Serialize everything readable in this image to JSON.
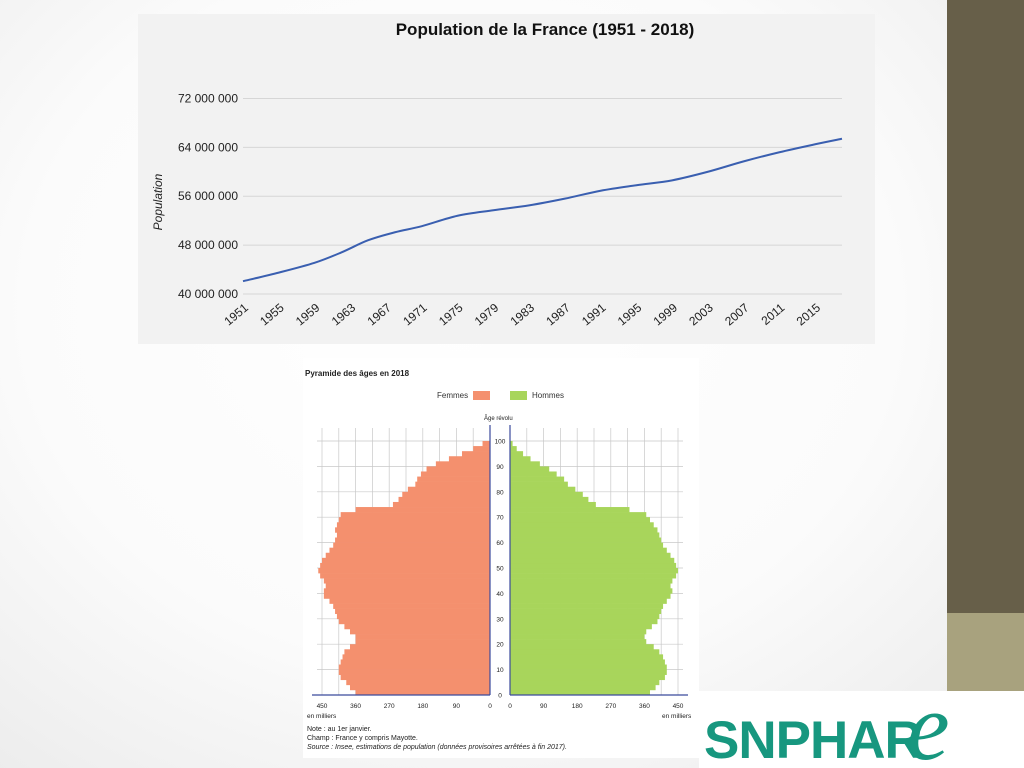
{
  "logo": {
    "text": "SNPHAR",
    "script_letter": "e",
    "color": "#17977f"
  },
  "chart_data": [
    {
      "type": "line",
      "title": "Population de la France (1951 - 2018)",
      "xlabel": "",
      "ylabel": "Population",
      "ylim": [
        40000000,
        76000000
      ],
      "xlim": [
        1951,
        2018
      ],
      "yticks": [
        "40 000 000",
        "48 000 000",
        "56 000 000",
        "64 000 000",
        "72 000 000"
      ],
      "ytick_values": [
        40000000,
        48000000,
        56000000,
        64000000,
        72000000
      ],
      "xticks": [
        "1951",
        "1955",
        "1959",
        "1963",
        "1967",
        "1971",
        "1975",
        "1979",
        "1983",
        "1987",
        "1991",
        "1995",
        "1999",
        "2003",
        "2007",
        "2011",
        "2015"
      ],
      "grid": true,
      "line_color": "#3a5fb0",
      "series": [
        {
          "x": [
            1951,
            1955,
            1959,
            1962,
            1965,
            1968,
            1971,
            1975,
            1979,
            1983,
            1987,
            1991,
            1995,
            1999,
            2003,
            2007,
            2011,
            2015,
            2018
          ],
          "values": [
            42100000,
            43500000,
            45100000,
            46800000,
            48800000,
            50100000,
            51100000,
            52800000,
            53700000,
            54500000,
            55600000,
            56900000,
            57800000,
            58600000,
            60000000,
            61700000,
            63200000,
            64500000,
            65400000
          ]
        }
      ]
    },
    {
      "type": "bar",
      "orientation": "horizontal-pyramid",
      "title": "Pyramide des âges en 2018",
      "ylabel": "Âge révolu",
      "xlabel": "en milliers",
      "xlim": [
        0,
        450
      ],
      "ylim": [
        0,
        100
      ],
      "xticks": [
        "450",
        "360",
        "270",
        "180",
        "90",
        "0"
      ],
      "yticks": [
        "0",
        "10",
        "20",
        "30",
        "40",
        "50",
        "60",
        "70",
        "80",
        "90",
        "100"
      ],
      "ages": [
        0,
        2,
        4,
        6,
        8,
        10,
        12,
        14,
        16,
        18,
        20,
        22,
        24,
        26,
        28,
        30,
        32,
        34,
        36,
        38,
        40,
        42,
        44,
        46,
        48,
        50,
        52,
        54,
        56,
        58,
        60,
        62,
        64,
        66,
        68,
        70,
        72,
        74,
        76,
        78,
        80,
        82,
        84,
        86,
        88,
        90,
        92,
        94,
        96,
        98,
        100
      ],
      "grid": true,
      "series": [
        {
          "name": "Femmes",
          "color": "#f4906e",
          "values": [
            360,
            375,
            385,
            400,
            405,
            405,
            400,
            395,
            390,
            375,
            360,
            360,
            375,
            390,
            405,
            410,
            415,
            420,
            430,
            445,
            445,
            440,
            445,
            455,
            460,
            455,
            450,
            440,
            430,
            420,
            415,
            410,
            415,
            410,
            405,
            400,
            360,
            260,
            245,
            235,
            220,
            200,
            195,
            185,
            170,
            145,
            110,
            75,
            45,
            20,
            8
          ]
        },
        {
          "name": "Hommes",
          "color": "#a8d55b",
          "values": [
            375,
            390,
            400,
            415,
            420,
            420,
            415,
            410,
            400,
            385,
            365,
            360,
            365,
            380,
            395,
            400,
            405,
            410,
            420,
            430,
            435,
            430,
            435,
            445,
            450,
            445,
            440,
            430,
            420,
            410,
            405,
            400,
            395,
            385,
            375,
            365,
            320,
            230,
            210,
            195,
            175,
            155,
            145,
            125,
            105,
            80,
            55,
            35,
            18,
            7,
            2
          ]
        }
      ],
      "notes": [
        "Note : au 1er janvier.",
        "Champ : France y compris Mayotte.",
        "Source : Insee, estimations de population (données provisoires arrêtées à fin 2017)."
      ]
    }
  ]
}
